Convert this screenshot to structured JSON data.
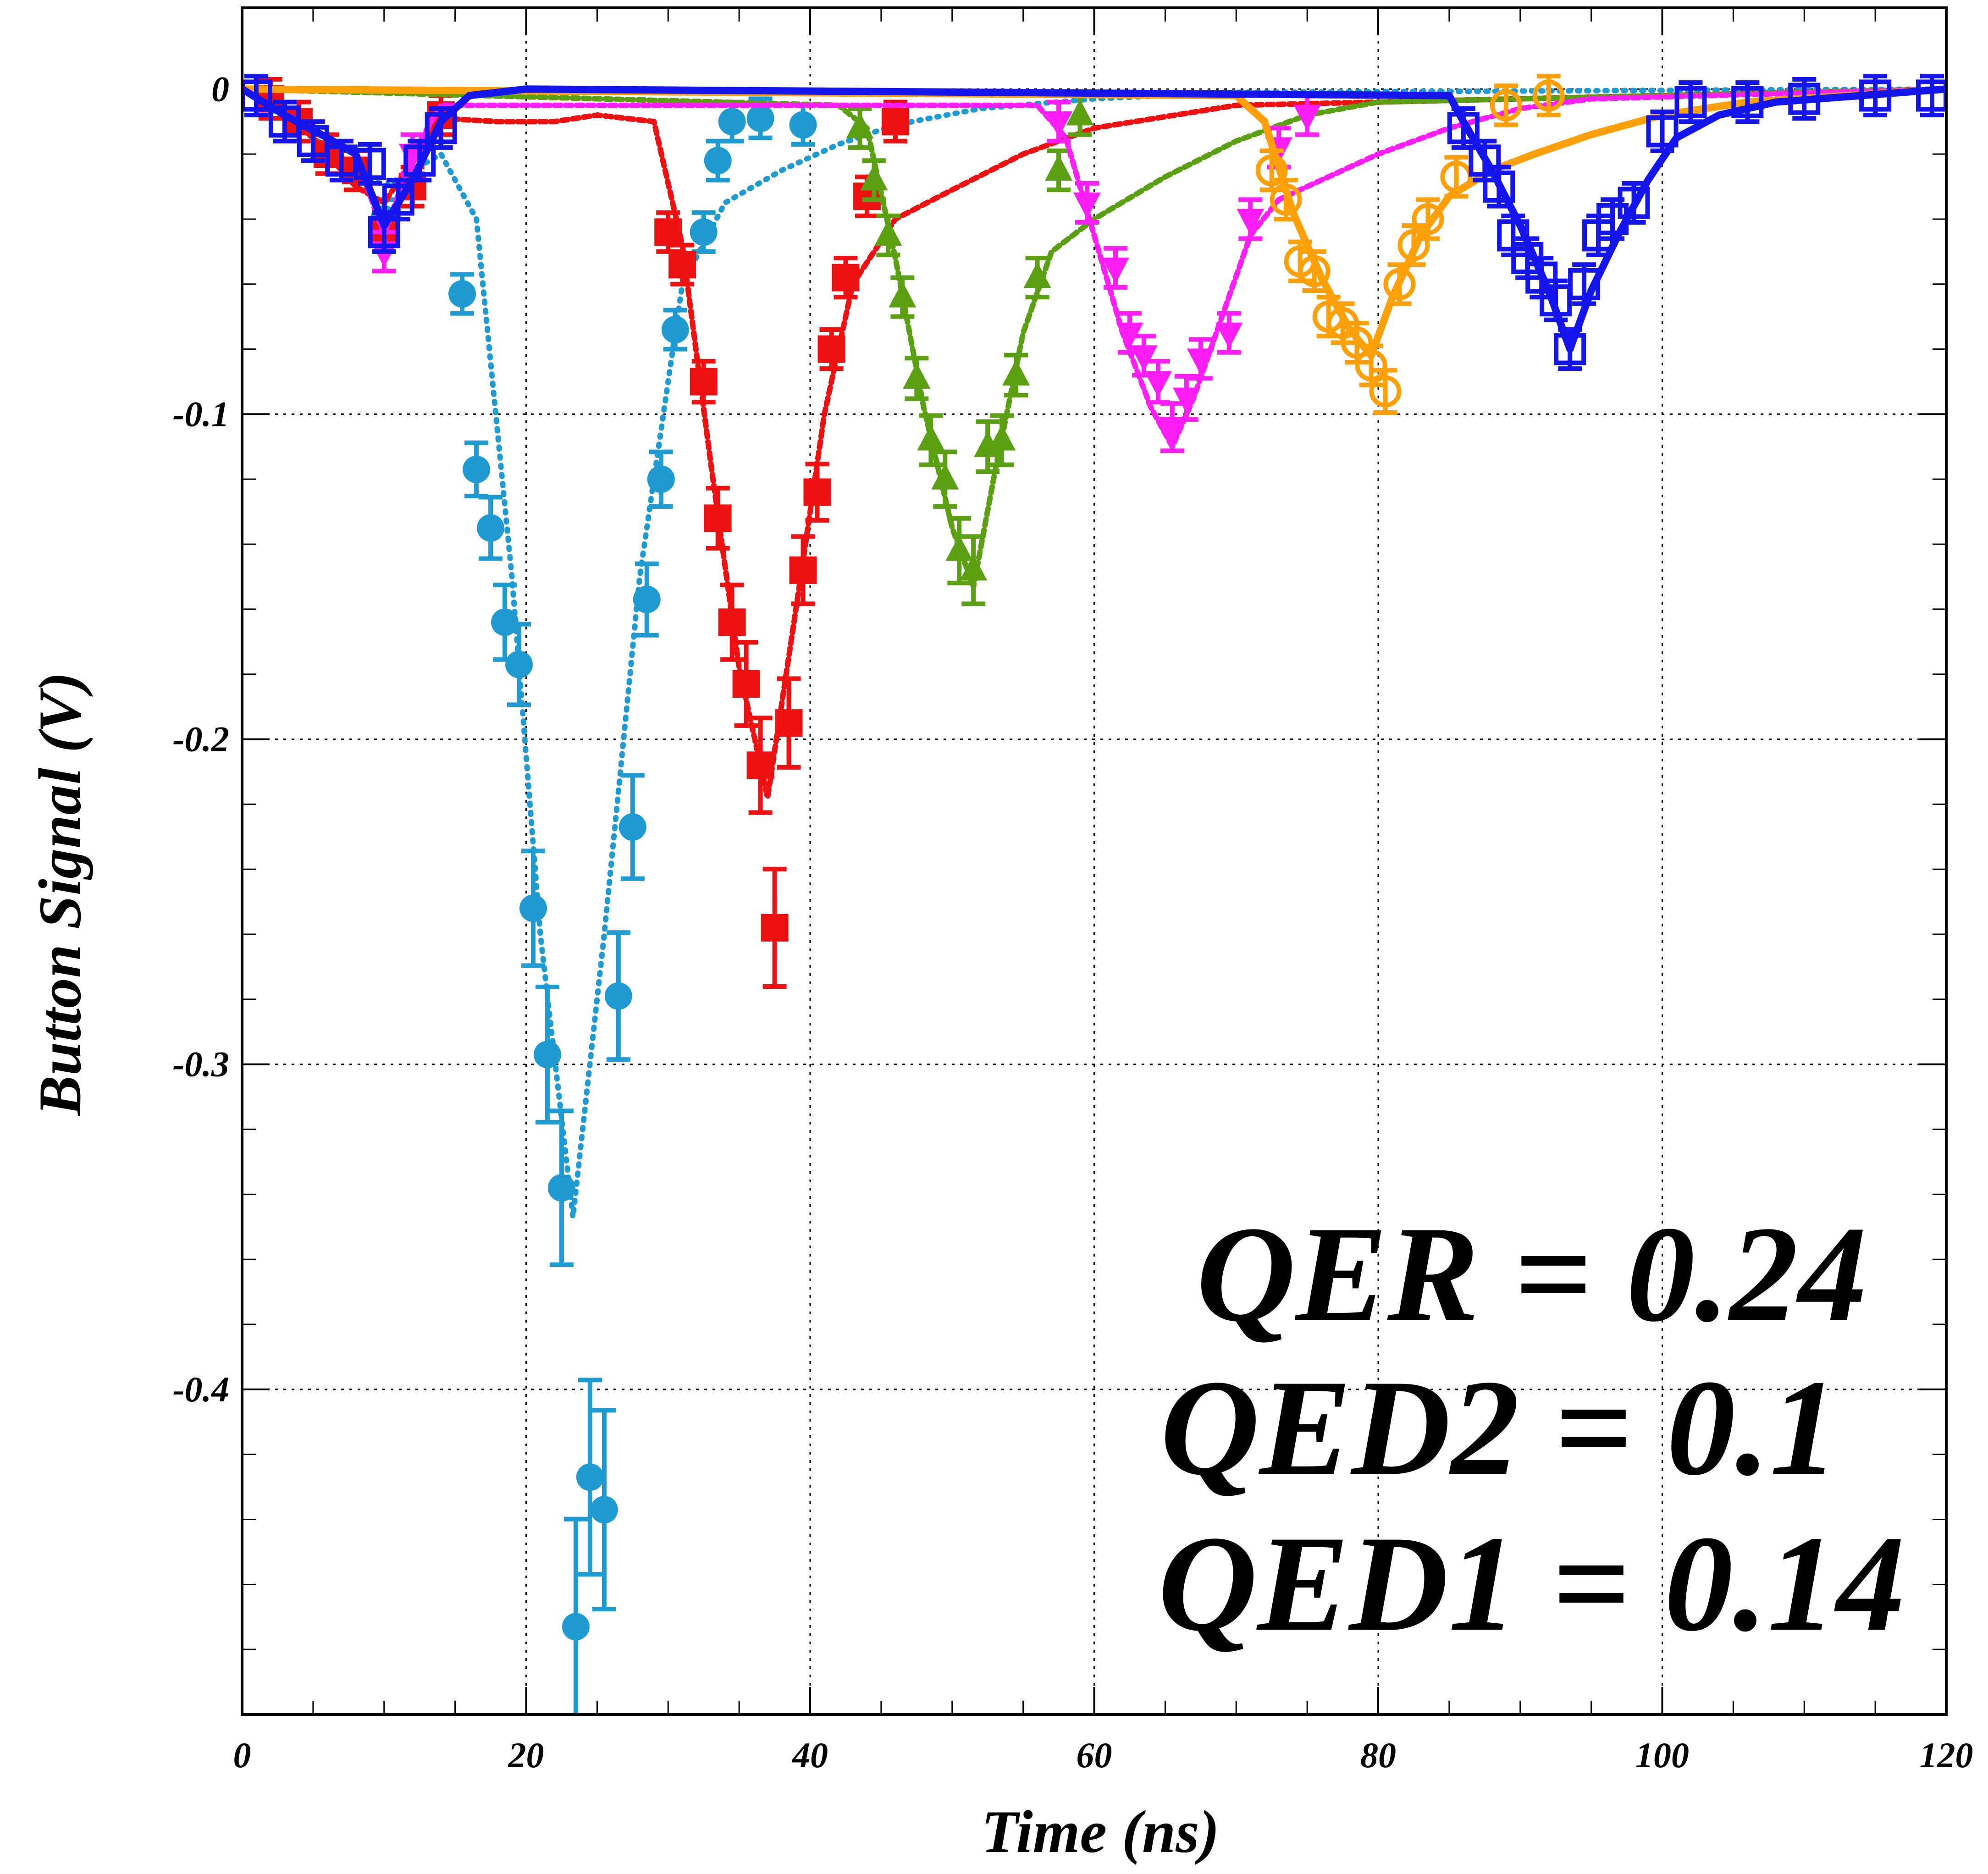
{
  "chart_data": {
    "type": "scatter",
    "xlabel": "Time (ns)",
    "ylabel": "Button Signal (V)",
    "xlim": [
      0,
      120
    ],
    "ylim": [
      -0.5,
      0.025
    ],
    "grid": true,
    "xticks": [
      0,
      20,
      40,
      60,
      80,
      100,
      120
    ],
    "yticks": [
      0,
      -0.1,
      -0.2,
      -0.3,
      -0.4
    ],
    "xtick_labels": [
      "0",
      "20",
      "40",
      "60",
      "80",
      "100",
      "120"
    ],
    "ytick_labels": [
      "0",
      "-0.1",
      "-0.2",
      "-0.3",
      "-0.4"
    ],
    "annotations": [
      "QER = 0.24",
      "QED2 = 0.1",
      "QED1 = 0.14"
    ],
    "series": [
      {
        "color": "#1f9bd1",
        "marker": "circle",
        "line_style": "dotted",
        "points": [
          [
            10,
            -0.04
          ],
          [
            15.5,
            -0.063
          ],
          [
            16.5,
            -0.117
          ],
          [
            17.5,
            -0.135
          ],
          [
            18.5,
            -0.164
          ],
          [
            19.5,
            -0.177
          ],
          [
            20.5,
            -0.252
          ],
          [
            21.5,
            -0.297
          ],
          [
            22.5,
            -0.338
          ],
          [
            23.5,
            -0.473
          ],
          [
            24.5,
            -0.427
          ],
          [
            25.5,
            -0.437
          ],
          [
            26.5,
            -0.279
          ],
          [
            27.5,
            -0.227
          ],
          [
            28.5,
            -0.157
          ],
          [
            29.5,
            -0.12
          ],
          [
            30.5,
            -0.074
          ],
          [
            32.5,
            -0.044
          ],
          [
            33.5,
            -0.022
          ],
          [
            34.5,
            -0.01
          ],
          [
            36.5,
            -0.009
          ],
          [
            39.5,
            -0.011
          ]
        ],
        "fit": [
          [
            0,
            0
          ],
          [
            10,
            -0.03
          ],
          [
            14,
            -0.02
          ],
          [
            16.5,
            -0.04
          ],
          [
            19,
            -0.15
          ],
          [
            21,
            -0.26
          ],
          [
            23.3,
            -0.347
          ],
          [
            25.5,
            -0.26
          ],
          [
            28,
            -0.15
          ],
          [
            31,
            -0.06
          ],
          [
            34,
            -0.035
          ],
          [
            38,
            -0.025
          ],
          [
            42,
            -0.017
          ],
          [
            46,
            -0.011
          ],
          [
            52,
            -0.006
          ],
          [
            60,
            -0.003
          ],
          [
            70,
            -0.001
          ],
          [
            120,
            0
          ]
        ]
      },
      {
        "color": "#ee1111",
        "marker": "square",
        "line_style": "dashed",
        "points": [
          [
            2,
            -0.003
          ],
          [
            4,
            -0.01
          ],
          [
            6,
            -0.02
          ],
          [
            8,
            -0.025
          ],
          [
            10,
            -0.044
          ],
          [
            12,
            -0.03
          ],
          [
            14,
            -0.008
          ],
          [
            30,
            -0.044
          ],
          [
            31,
            -0.054
          ],
          [
            32.5,
            -0.09
          ],
          [
            33.5,
            -0.132
          ],
          [
            34.5,
            -0.164
          ],
          [
            35.5,
            -0.183
          ],
          [
            36.5,
            -0.208
          ],
          [
            37.5,
            -0.258
          ],
          [
            38.5,
            -0.195
          ],
          [
            39.5,
            -0.148
          ],
          [
            40.5,
            -0.124
          ],
          [
            41.5,
            -0.08
          ],
          [
            42.5,
            -0.058
          ],
          [
            44,
            -0.033
          ],
          [
            46,
            -0.01
          ]
        ],
        "fit": [
          [
            0,
            0
          ],
          [
            2,
            -0.004
          ],
          [
            5,
            -0.015
          ],
          [
            8,
            -0.03
          ],
          [
            10,
            -0.035
          ],
          [
            12,
            -0.022
          ],
          [
            14,
            -0.009
          ],
          [
            18,
            -0.01
          ],
          [
            22,
            -0.01
          ],
          [
            25,
            -0.008
          ],
          [
            29,
            -0.01
          ],
          [
            31,
            -0.048
          ],
          [
            33,
            -0.115
          ],
          [
            35,
            -0.178
          ],
          [
            37,
            -0.218
          ],
          [
            39,
            -0.16
          ],
          [
            41,
            -0.1
          ],
          [
            43,
            -0.06
          ],
          [
            46,
            -0.04
          ],
          [
            50,
            -0.031
          ],
          [
            55,
            -0.02
          ],
          [
            60,
            -0.012
          ],
          [
            70,
            -0.005
          ],
          [
            120,
            0
          ]
        ]
      },
      {
        "color": "#5aa012",
        "marker": "triangle-up",
        "line_style": "dashed",
        "points": [
          [
            43.5,
            -0.012
          ],
          [
            44.5,
            -0.028
          ],
          [
            45.5,
            -0.045
          ],
          [
            46.5,
            -0.064
          ],
          [
            47.5,
            -0.089
          ],
          [
            48.5,
            -0.108
          ],
          [
            49.5,
            -0.12
          ],
          [
            50.5,
            -0.142
          ],
          [
            51.5,
            -0.148
          ],
          [
            52.5,
            -0.11
          ],
          [
            53.5,
            -0.108
          ],
          [
            54.5,
            -0.088
          ],
          [
            56,
            -0.058
          ],
          [
            57.5,
            -0.025
          ],
          [
            59,
            -0.008
          ]
        ],
        "fit": [
          [
            0,
            0
          ],
          [
            42,
            -0.005
          ],
          [
            44,
            -0.012
          ],
          [
            46,
            -0.052
          ],
          [
            48,
            -0.098
          ],
          [
            50,
            -0.135
          ],
          [
            51.5,
            -0.153
          ],
          [
            53,
            -0.118
          ],
          [
            55,
            -0.075
          ],
          [
            57,
            -0.05
          ],
          [
            60,
            -0.04
          ],
          [
            65,
            -0.027
          ],
          [
            70,
            -0.016
          ],
          [
            75,
            -0.008
          ],
          [
            80,
            -0.004
          ],
          [
            120,
            0
          ]
        ]
      },
      {
        "color": "#ff1ef5",
        "marker": "triangle-down",
        "line_style": "dashed",
        "points": [
          [
            10,
            -0.05
          ],
          [
            12,
            -0.02
          ],
          [
            57.5,
            -0.01
          ],
          [
            59.5,
            -0.035
          ],
          [
            61.5,
            -0.055
          ],
          [
            62.5,
            -0.075
          ],
          [
            63.5,
            -0.082
          ],
          [
            64.5,
            -0.09
          ],
          [
            65.5,
            -0.104
          ],
          [
            66.5,
            -0.095
          ],
          [
            67.5,
            -0.083
          ],
          [
            69.5,
            -0.075
          ],
          [
            71,
            -0.04
          ],
          [
            73,
            -0.018
          ],
          [
            75,
            -0.008
          ]
        ],
        "fit": [
          [
            0,
            0
          ],
          [
            8,
            -0.02
          ],
          [
            10,
            -0.045
          ],
          [
            12,
            -0.02
          ],
          [
            14,
            -0.005
          ],
          [
            56,
            -0.005
          ],
          [
            58,
            -0.015
          ],
          [
            60,
            -0.045
          ],
          [
            62,
            -0.075
          ],
          [
            64,
            -0.098
          ],
          [
            65.5,
            -0.11
          ],
          [
            67,
            -0.095
          ],
          [
            69,
            -0.07
          ],
          [
            71,
            -0.045
          ],
          [
            73,
            -0.034
          ],
          [
            76,
            -0.028
          ],
          [
            80,
            -0.02
          ],
          [
            85,
            -0.012
          ],
          [
            90,
            -0.006
          ],
          [
            95,
            -0.003
          ],
          [
            120,
            0
          ]
        ]
      },
      {
        "color": "#ffa008",
        "marker": "circle-open",
        "line_style": "solid",
        "points": [
          [
            72.5,
            -0.025
          ],
          [
            73.5,
            -0.034
          ],
          [
            74.5,
            -0.053
          ],
          [
            75.5,
            -0.056
          ],
          [
            76.5,
            -0.07
          ],
          [
            77.5,
            -0.072
          ],
          [
            78.5,
            -0.078
          ],
          [
            79.5,
            -0.085
          ],
          [
            80.5,
            -0.093
          ],
          [
            81.5,
            -0.06
          ],
          [
            82.5,
            -0.048
          ],
          [
            83.5,
            -0.04
          ],
          [
            85.5,
            -0.027
          ],
          [
            89,
            -0.005
          ],
          [
            92,
            -0.002
          ]
        ],
        "fit": [
          [
            0,
            0
          ],
          [
            70,
            -0.002
          ],
          [
            72,
            -0.01
          ],
          [
            74,
            -0.038
          ],
          [
            76,
            -0.058
          ],
          [
            78,
            -0.074
          ],
          [
            79.5,
            -0.082
          ],
          [
            81,
            -0.064
          ],
          [
            83,
            -0.045
          ],
          [
            85,
            -0.033
          ],
          [
            88,
            -0.025
          ],
          [
            91,
            -0.02
          ],
          [
            95,
            -0.014
          ],
          [
            100,
            -0.008
          ],
          [
            106,
            -0.004
          ],
          [
            120,
            0
          ]
        ]
      },
      {
        "color": "#1515ee",
        "marker": "square-open",
        "line_style": "solid",
        "points": [
          [
            1,
            -0.002
          ],
          [
            3,
            -0.01
          ],
          [
            5,
            -0.016
          ],
          [
            7,
            -0.022
          ],
          [
            9,
            -0.023
          ],
          [
            10,
            -0.044
          ],
          [
            11,
            -0.034
          ],
          [
            12.5,
            -0.022
          ],
          [
            14,
            -0.012
          ],
          [
            86,
            -0.012
          ],
          [
            87.5,
            -0.022
          ],
          [
            88.5,
            -0.03
          ],
          [
            89.5,
            -0.045
          ],
          [
            90.5,
            -0.052
          ],
          [
            91.5,
            -0.058
          ],
          [
            92.5,
            -0.065
          ],
          [
            93.5,
            -0.08
          ],
          [
            94.5,
            -0.06
          ],
          [
            95.5,
            -0.045
          ],
          [
            96.5,
            -0.04
          ],
          [
            98,
            -0.035
          ],
          [
            100,
            -0.013
          ],
          [
            102,
            -0.004
          ],
          [
            106,
            -0.004
          ],
          [
            110,
            -0.003
          ],
          [
            115,
            -0.002
          ],
          [
            119,
            -0.002
          ]
        ],
        "fit": [
          [
            0,
            0
          ],
          [
            3,
            -0.008
          ],
          [
            6,
            -0.015
          ],
          [
            8,
            -0.02
          ],
          [
            10,
            -0.042
          ],
          [
            12,
            -0.028
          ],
          [
            14,
            -0.01
          ],
          [
            16,
            -0.002
          ],
          [
            20,
            0
          ],
          [
            85,
            -0.002
          ],
          [
            86,
            -0.01
          ],
          [
            88,
            -0.025
          ],
          [
            90,
            -0.042
          ],
          [
            92,
            -0.062
          ],
          [
            93.5,
            -0.08
          ],
          [
            95,
            -0.062
          ],
          [
            97,
            -0.044
          ],
          [
            99,
            -0.028
          ],
          [
            101,
            -0.015
          ],
          [
            104,
            -0.008
          ],
          [
            108,
            -0.004
          ],
          [
            114,
            -0.002
          ],
          [
            120,
            0
          ]
        ]
      }
    ]
  }
}
